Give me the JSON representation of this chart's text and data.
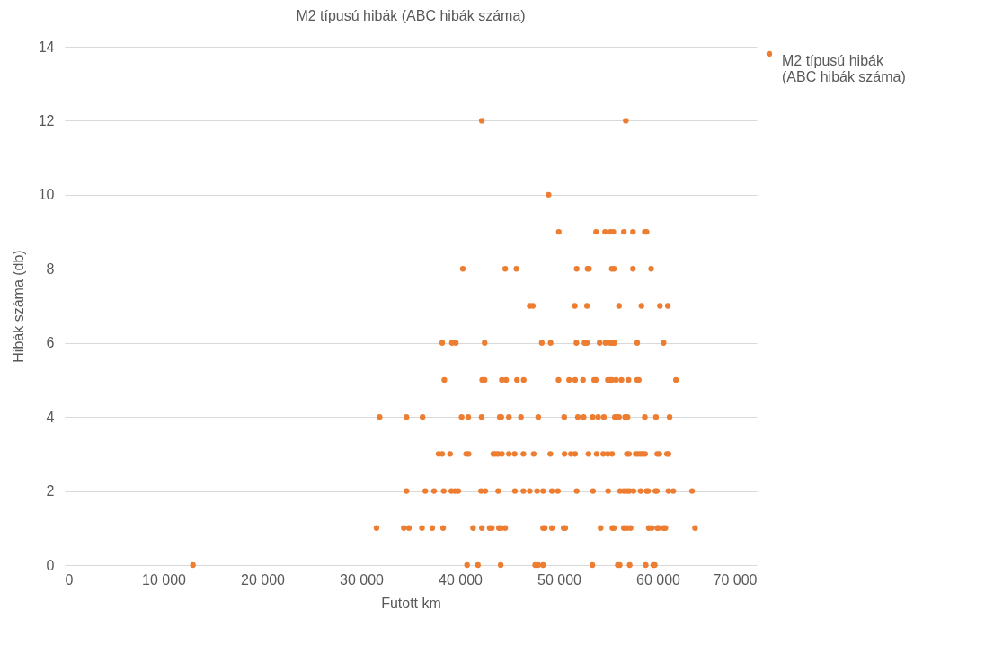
{
  "chart_data": {
    "type": "scatter",
    "title": "M2 típusú hibák (ABC hibák száma)",
    "xlabel": "Futott km",
    "ylabel": "Hibák száma (db)",
    "xlim": [
      0,
      70000
    ],
    "ylim": [
      0,
      14
    ],
    "xticks": [
      {
        "value": 0,
        "label": "0"
      },
      {
        "value": 10000,
        "label": "10 000"
      },
      {
        "value": 20000,
        "label": "20 000"
      },
      {
        "value": 30000,
        "label": "30 000"
      },
      {
        "value": 40000,
        "label": "40 000"
      },
      {
        "value": 50000,
        "label": "50 000"
      },
      {
        "value": 60000,
        "label": "60 000"
      },
      {
        "value": 70000,
        "label": "70 000"
      }
    ],
    "yticks": [
      0,
      2,
      4,
      6,
      8,
      10,
      12,
      14
    ],
    "grid": "y",
    "legend": "right",
    "marker": "circle",
    "series": [
      {
        "name": "M2 típusú hibák (ABC hibák száma)",
        "color": "#ed7d31",
        "x": [
          42190,
          56760,
          48950,
          49980,
          53750,
          54660,
          55200,
          55500,
          56560,
          57480,
          58680,
          58860,
          40270,
          44560,
          45690,
          51790,
          52890,
          53040,
          55340,
          55550,
          57480,
          59320,
          47040,
          47350,
          51600,
          52830,
          56070,
          58340,
          60210,
          61010,
          38190,
          39170,
          39570,
          42480,
          48260,
          49150,
          51760,
          52580,
          52830,
          54110,
          54700,
          55190,
          55400,
          55620,
          57910,
          60580,
          38400,
          42230,
          42480,
          44220,
          44650,
          45750,
          46430,
          49950,
          51020,
          51630,
          52430,
          53560,
          53720,
          54940,
          55160,
          55340,
          55770,
          56320,
          57030,
          57910,
          58070,
          61830,
          31850,
          34570,
          36200,
          40150,
          40820,
          42170,
          44010,
          44160,
          44930,
          46150,
          47900,
          50530,
          51910,
          52490,
          53410,
          53960,
          54540,
          55650,
          55890,
          56070,
          56690,
          56930,
          58680,
          59810,
          61190,
          37820,
          38180,
          38980,
          40610,
          40850,
          43360,
          43610,
          43850,
          44220,
          44930,
          45510,
          46400,
          47440,
          49120,
          50560,
          51210,
          51630,
          52980,
          53810,
          54480,
          54940,
          55370,
          56870,
          57080,
          57760,
          58000,
          58250,
          58460,
          58710,
          59940,
          60150,
          60920,
          61070,
          34570,
          36470,
          37360,
          38340,
          39110,
          39470,
          39810,
          42110,
          42540,
          43850,
          45540,
          46400,
          47040,
          47780,
          48390,
          49280,
          49890,
          51790,
          53440,
          54970,
          56170,
          56560,
          56870,
          57110,
          57540,
          58250,
          58860,
          59020,
          59750,
          59900,
          61070,
          61560,
          63460,
          31540,
          34300,
          34820,
          36140,
          37180,
          38280,
          41310,
          42200,
          42990,
          43210,
          43920,
          44160,
          44560,
          48390,
          48570,
          49280,
          50470,
          50630,
          54210,
          55400,
          55550,
          56560,
          56870,
          57240,
          59080,
          59380,
          59940,
          60060,
          60550,
          60760,
          63760,
          12970,
          40700,
          41800,
          44100,
          47590,
          47900,
          48390,
          53380,
          55950,
          56140,
          57150,
          58770,
          59540,
          59690
        ],
        "values": [
          12,
          12,
          10,
          9,
          9,
          9,
          9,
          9,
          9,
          9,
          9,
          9,
          8,
          8,
          8,
          8,
          8,
          8,
          8,
          8,
          8,
          8,
          7,
          7,
          7,
          7,
          7,
          7,
          7,
          7,
          6,
          6,
          6,
          6,
          6,
          6,
          6,
          6,
          6,
          6,
          6,
          6,
          6,
          6,
          6,
          6,
          5,
          5,
          5,
          5,
          5,
          5,
          5,
          5,
          5,
          5,
          5,
          5,
          5,
          5,
          5,
          5,
          5,
          5,
          5,
          5,
          5,
          5,
          4,
          4,
          4,
          4,
          4,
          4,
          4,
          4,
          4,
          4,
          4,
          4,
          4,
          4,
          4,
          4,
          4,
          4,
          4,
          4,
          4,
          4,
          4,
          4,
          4,
          3,
          3,
          3,
          3,
          3,
          3,
          3,
          3,
          3,
          3,
          3,
          3,
          3,
          3,
          3,
          3,
          3,
          3,
          3,
          3,
          3,
          3,
          3,
          3,
          3,
          3,
          3,
          3,
          3,
          3,
          3,
          3,
          3,
          2,
          2,
          2,
          2,
          2,
          2,
          2,
          2,
          2,
          2,
          2,
          2,
          2,
          2,
          2,
          2,
          2,
          2,
          2,
          2,
          2,
          2,
          2,
          2,
          2,
          2,
          2,
          2,
          2,
          2,
          2,
          2,
          2,
          1,
          1,
          1,
          1,
          1,
          1,
          1,
          1,
          1,
          1,
          1,
          1,
          1,
          1,
          1,
          1,
          1,
          1,
          1,
          1,
          1,
          1,
          1,
          1,
          1,
          1,
          1,
          1,
          1,
          1,
          1,
          0,
          0,
          0,
          0,
          0,
          0,
          0,
          0,
          0,
          0,
          0,
          0,
          0,
          0
        ]
      }
    ]
  }
}
